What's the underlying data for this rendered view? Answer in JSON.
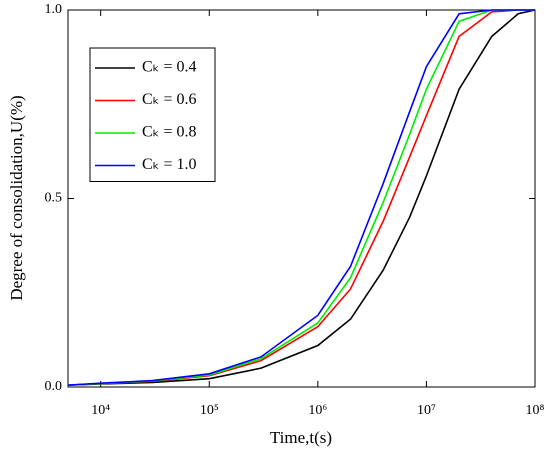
{
  "chart_data": {
    "type": "line",
    "x_label": "Time,t(s)",
    "y_label": "Degree of consolidation,U(%)",
    "x": [
      5000,
      10000,
      30000,
      100000,
      300000,
      1000000,
      2000000,
      4000000,
      7000000,
      10000000,
      20000000,
      40000000,
      70000000,
      100000000
    ],
    "series": [
      {
        "name": "Cₖ = 0.4",
        "color": "#000000",
        "values": [
          0.005,
          0.008,
          0.012,
          0.022,
          0.05,
          0.11,
          0.18,
          0.31,
          0.45,
          0.56,
          0.79,
          0.93,
          0.99,
          1.0
        ]
      },
      {
        "name": "Cₖ = 0.6",
        "color": "#ff0000",
        "values": [
          0.005,
          0.009,
          0.015,
          0.03,
          0.07,
          0.16,
          0.26,
          0.44,
          0.61,
          0.72,
          0.93,
          0.995,
          1.0,
          1.0
        ]
      },
      {
        "name": "Cₖ = 0.8",
        "color": "#00ee00",
        "values": [
          0.005,
          0.009,
          0.016,
          0.032,
          0.075,
          0.17,
          0.29,
          0.49,
          0.67,
          0.79,
          0.97,
          1.0,
          1.0,
          1.0
        ]
      },
      {
        "name": "Cₖ = 1.0",
        "color": "#0000ff",
        "values": [
          0.005,
          0.01,
          0.017,
          0.035,
          0.08,
          0.19,
          0.32,
          0.54,
          0.73,
          0.85,
          0.99,
          1.0,
          1.0,
          1.0
        ]
      }
    ],
    "xlim": [
      5000,
      100000000
    ],
    "xscale": "log",
    "xticks": [
      {
        "value": 10000,
        "label": "10⁴"
      },
      {
        "value": 100000,
        "label": "10⁵"
      },
      {
        "value": 1000000,
        "label": "10⁶"
      },
      {
        "value": 10000000,
        "label": "10⁷"
      },
      {
        "value": 100000000,
        "label": "10⁸"
      }
    ],
    "ylim": [
      0,
      1
    ],
    "yticks": [
      {
        "value": 0,
        "label": "0.0"
      },
      0.5,
      {
        "value": 1,
        "label": "1.0"
      }
    ],
    "legend": "upper left"
  }
}
